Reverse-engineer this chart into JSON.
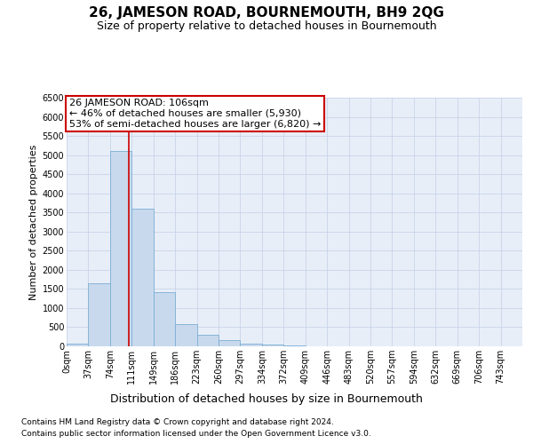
{
  "title": "26, JAMESON ROAD, BOURNEMOUTH, BH9 2QG",
  "subtitle": "Size of property relative to detached houses in Bournemouth",
  "xlabel": "Distribution of detached houses by size in Bournemouth",
  "ylabel": "Number of detached properties",
  "footnote1": "Contains HM Land Registry data © Crown copyright and database right 2024.",
  "footnote2": "Contains public sector information licensed under the Open Government Licence v3.0.",
  "bar_labels": [
    "0sqm",
    "37sqm",
    "74sqm",
    "111sqm",
    "149sqm",
    "186sqm",
    "223sqm",
    "260sqm",
    "297sqm",
    "334sqm",
    "372sqm",
    "409sqm",
    "446sqm",
    "483sqm",
    "520sqm",
    "557sqm",
    "594sqm",
    "632sqm",
    "669sqm",
    "706sqm",
    "743sqm"
  ],
  "bar_values": [
    60,
    1650,
    5100,
    3600,
    1420,
    580,
    300,
    155,
    80,
    50,
    30,
    10,
    5,
    2,
    1,
    1,
    0,
    0,
    0,
    0,
    0
  ],
  "bar_color": "#c9d9ed",
  "bar_edge_color": "#7aadd4",
  "annotation_text": "26 JAMESON ROAD: 106sqm\n← 46% of detached houses are smaller (5,930)\n53% of semi-detached houses are larger (6,820) →",
  "annotation_box_color": "#ffffff",
  "annotation_box_edge": "#cc0000",
  "ylim": [
    0,
    6500
  ],
  "yticks": [
    0,
    500,
    1000,
    1500,
    2000,
    2500,
    3000,
    3500,
    4000,
    4500,
    5000,
    5500,
    6000,
    6500
  ],
  "grid_color": "#c8d4e8",
  "background_color": "#e8eef8",
  "title_fontsize": 11,
  "subtitle_fontsize": 9,
  "ylabel_fontsize": 8,
  "xlabel_fontsize": 9,
  "tick_fontsize": 7,
  "annot_fontsize": 8,
  "footnote_fontsize": 6.5
}
